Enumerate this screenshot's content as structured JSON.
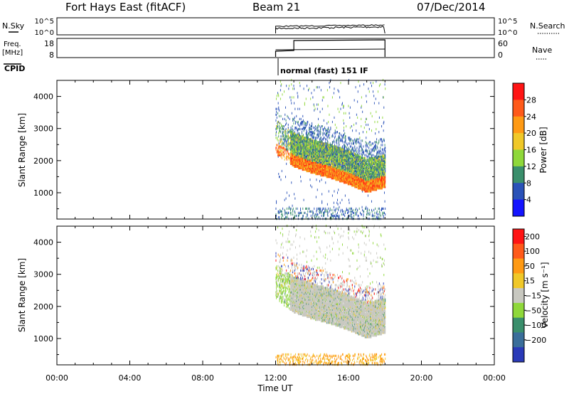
{
  "header": {
    "station": "Fort Hays East (fitACF)",
    "beam": "Beam 21",
    "date": "07/Dec/2014"
  },
  "top_panels": {
    "nsky_label": "N.Sky",
    "nsky_ticks": [
      "10^5",
      "10^0"
    ],
    "nsearch_label": "N.Search",
    "nsearch_ticks": [
      "10^5",
      "10^0"
    ],
    "freq_label": "Freq.",
    "freq_unit": "[MHz]",
    "freq_ticks": [
      "18",
      "8"
    ],
    "nave_label": "Nave",
    "nave_ticks": [
      "60",
      "0"
    ],
    "cpid_label": "CPID",
    "mode_text": "normal (fast) 151 IF"
  },
  "time_axis": {
    "title": "Time UT",
    "ticks": [
      "00:00",
      "04:00",
      "08:00",
      "12:00",
      "16:00",
      "20:00",
      "00:00"
    ]
  },
  "chart_data": [
    {
      "type": "heatmap",
      "title": "",
      "xlabel": "Time UT",
      "ylabel": "Slant Range [km]",
      "ylim": [
        180,
        4500
      ],
      "yticks": [
        1000,
        2000,
        3000,
        4000
      ],
      "data_extent_ut": [
        "12:00",
        "18:00"
      ],
      "colorbar": {
        "label": "Power [dB]",
        "ticks": [
          4,
          8,
          12,
          16,
          20,
          24,
          28
        ],
        "colors": [
          "#1414ff",
          "#2a52b8",
          "#3a8f6c",
          "#8fd83a",
          "#f0c828",
          "#ff9a14",
          "#ff5a1a",
          "#ff1414"
        ]
      },
      "main_echo_band": [
        {
          "ut": 12.0,
          "range_km": 2450
        },
        {
          "ut": 13.0,
          "range_km": 2050
        },
        {
          "ut": 14.0,
          "range_km": 1850
        },
        {
          "ut": 15.0,
          "range_km": 1700
        },
        {
          "ut": 16.0,
          "range_km": 1500
        },
        {
          "ut": 17.0,
          "range_km": 1250
        },
        {
          "ut": 18.0,
          "range_km": 1400
        }
      ]
    },
    {
      "type": "heatmap",
      "title": "",
      "xlabel": "Time UT",
      "ylabel": "Slant Range [km]",
      "ylim": [
        180,
        4500
      ],
      "yticks": [
        1000,
        2000,
        3000,
        4000
      ],
      "data_extent_ut": [
        "12:00",
        "18:00"
      ],
      "colorbar": {
        "label": "Velocity [m s⁻¹]",
        "ticks": [
          "200",
          "100",
          "50",
          "15",
          "−15",
          "−50",
          "−100",
          "−200"
        ],
        "colors": [
          "#2a3ab8",
          "#3a6e9a",
          "#3a8f6c",
          "#8fd83a",
          "#c8c8c0",
          "#f0c828",
          "#ff9a14",
          "#ff5a1a",
          "#ff1414"
        ]
      }
    }
  ]
}
